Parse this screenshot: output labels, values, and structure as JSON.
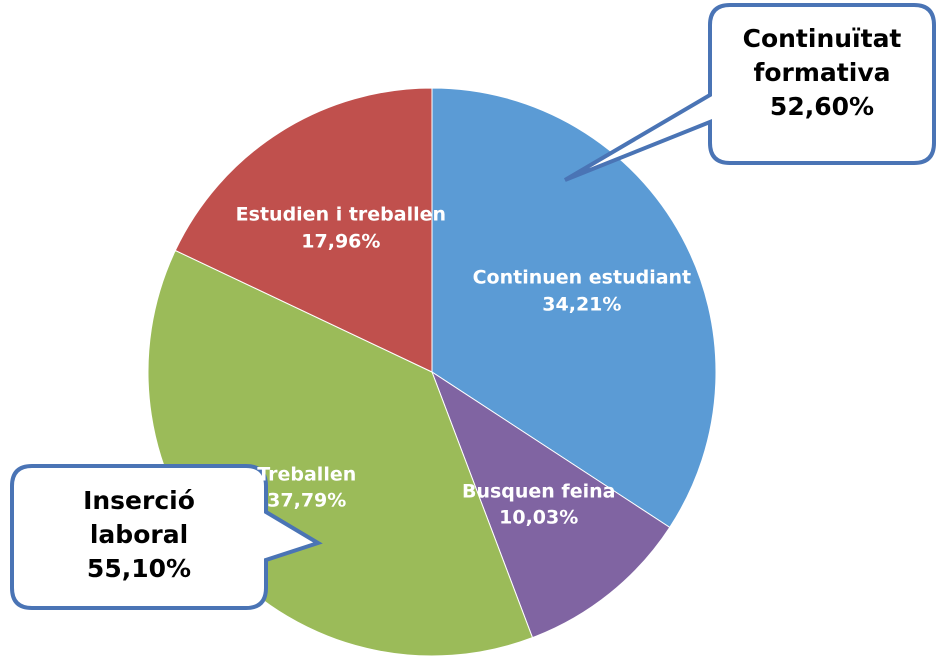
{
  "chart_data": {
    "type": "pie",
    "categories": [
      "Continuen estudiant",
      "Busquen feina",
      "Treballen",
      "Estudien i treballen"
    ],
    "values": [
      34.21,
      10.03,
      37.79,
      17.96
    ],
    "value_labels": [
      "34,21%",
      "10,03%",
      "37,79%",
      "17,96%"
    ],
    "colors": [
      "#5b9bd5",
      "#8064a2",
      "#9bbb59",
      "#c0504d"
    ],
    "annotations": [
      {
        "text": "Continuïtat formativa",
        "value": 52.6,
        "label": "52,60%"
      },
      {
        "text": "Inserció laboral",
        "value": 55.1,
        "label": "55,10%"
      }
    ]
  }
}
